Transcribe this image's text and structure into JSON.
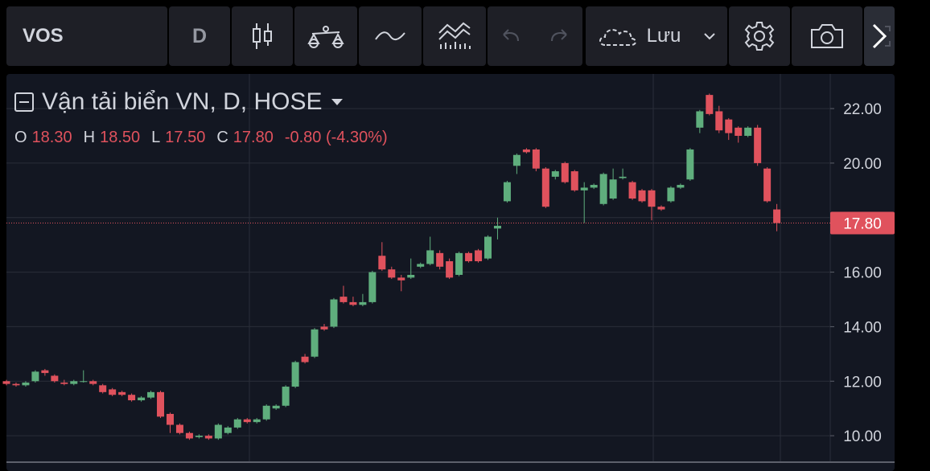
{
  "toolbar": {
    "symbol": "VOS",
    "interval": "D",
    "save": "Lưu"
  },
  "chart_data": {
    "type": "candlestick",
    "title": "Vận tải biển VN, D, HOSE",
    "legend": [
      {
        "key": "O",
        "value": "18.30"
      },
      {
        "key": "H",
        "value": "18.50"
      },
      {
        "key": "L",
        "value": "17.50"
      },
      {
        "key": "C",
        "value": "17.80"
      }
    ],
    "change": "-0.80 (-4.30%)",
    "open": [
      12.0,
      11.9,
      11.85,
      12.0,
      12.4,
      12.2,
      11.95,
      11.9,
      12.0,
      12.0,
      11.85,
      11.7,
      11.6,
      11.5,
      11.3,
      11.4,
      11.6,
      10.8,
      10.4,
      10.1,
      9.95,
      10.0,
      9.9,
      10.1,
      10.3,
      10.6,
      10.5,
      10.6,
      11.0,
      11.1,
      11.8,
      12.9,
      12.9,
      14.0,
      14.0,
      15.1,
      14.9,
      14.8,
      14.9,
      16.6,
      16.1,
      15.8,
      15.8,
      16.2,
      16.3,
      16.7,
      16.4,
      15.9,
      16.7,
      16.8,
      16.5,
      17.6,
      18.6,
      19.9,
      20.5,
      20.5,
      19.8,
      19.5,
      20.0,
      19.7,
      19.0,
      19.1,
      18.5,
      18.7,
      19.45,
      19.3,
      19.0,
      19.0,
      18.4,
      18.6,
      19.1,
      19.4,
      21.3,
      22.5,
      21.9,
      21.6,
      21.3,
      21.0,
      21.3,
      19.8,
      18.3
    ],
    "high": [
      12.05,
      11.95,
      12.0,
      12.4,
      12.45,
      12.25,
      12.05,
      12.05,
      12.4,
      12.05,
      11.9,
      11.75,
      11.65,
      11.55,
      11.45,
      11.65,
      11.65,
      10.85,
      10.45,
      10.15,
      10.05,
      10.05,
      10.45,
      10.35,
      10.65,
      10.65,
      10.65,
      11.15,
      11.15,
      11.85,
      12.75,
      13.0,
      13.95,
      14.1,
      15.05,
      15.5,
      15.1,
      15.2,
      16.05,
      17.1,
      16.2,
      15.9,
      16.5,
      16.35,
      17.3,
      16.8,
      16.5,
      16.75,
      16.75,
      16.85,
      17.35,
      18.0,
      19.35,
      20.35,
      20.55,
      20.55,
      19.85,
      19.75,
      20.05,
      19.75,
      19.3,
      19.25,
      19.65,
      19.8,
      19.8,
      19.35,
      19.05,
      19.05,
      18.45,
      19.15,
      19.25,
      20.55,
      21.95,
      22.55,
      22.1,
      21.65,
      21.35,
      21.35,
      21.4,
      19.85,
      18.5
    ],
    "low": [
      11.85,
      11.8,
      11.8,
      11.95,
      12.2,
      11.95,
      11.85,
      11.85,
      11.95,
      11.85,
      11.55,
      11.45,
      11.45,
      11.25,
      11.25,
      11.35,
      10.65,
      10.1,
      10.05,
      9.85,
      9.9,
      9.85,
      9.85,
      10.05,
      10.25,
      10.45,
      10.45,
      10.55,
      10.95,
      11.05,
      11.75,
      12.65,
      12.85,
      13.85,
      13.95,
      14.85,
      14.75,
      14.75,
      14.85,
      16.05,
      15.75,
      15.3,
      15.75,
      16.15,
      16.25,
      16.1,
      15.75,
      15.85,
      16.35,
      16.35,
      16.45,
      17.2,
      18.55,
      19.6,
      20.35,
      19.7,
      18.35,
      19.4,
      19.25,
      18.95,
      17.8,
      19.05,
      18.45,
      18.65,
      19.4,
      18.65,
      18.55,
      17.9,
      18.25,
      18.55,
      19.05,
      19.35,
      21.1,
      21.75,
      21.1,
      20.85,
      20.75,
      20.95,
      19.9,
      18.55,
      17.5
    ],
    "close": [
      11.9,
      11.85,
      11.95,
      12.35,
      12.3,
      12.0,
      11.9,
      12.0,
      12.0,
      11.9,
      11.6,
      11.5,
      11.5,
      11.3,
      11.4,
      11.6,
      10.7,
      10.4,
      10.1,
      9.9,
      10.0,
      9.9,
      10.4,
      10.3,
      10.6,
      10.5,
      10.6,
      11.1,
      11.1,
      11.8,
      12.7,
      12.7,
      13.9,
      13.9,
      15.0,
      14.9,
      14.8,
      14.9,
      16.0,
      16.1,
      15.8,
      15.7,
      15.9,
      16.3,
      16.8,
      16.2,
      15.8,
      16.7,
      16.4,
      16.4,
      17.3,
      17.7,
      19.3,
      20.3,
      20.4,
      19.8,
      18.4,
      19.7,
      19.3,
      19.0,
      19.1,
      19.2,
      19.6,
      19.4,
      19.5,
      18.7,
      18.6,
      18.4,
      18.3,
      19.1,
      19.2,
      20.5,
      21.9,
      21.8,
      21.2,
      21.1,
      21.0,
      21.3,
      20.0,
      18.6,
      17.8
    ],
    "up_color": "#5fae7d",
    "down_color": "#e0525d",
    "last_price": {
      "value": 17.8,
      "label": "17.80"
    },
    "ylim": [
      9.03,
      23.27
    ],
    "yticks": [
      {
        "value": 10,
        "label": "10.00"
      },
      {
        "value": 12,
        "label": "12.00"
      },
      {
        "value": 14,
        "label": "14.00"
      },
      {
        "value": 16,
        "label": "16.00"
      },
      {
        "value": 18,
        "label": "18.00"
      },
      {
        "value": 20,
        "label": "20.00"
      },
      {
        "value": 22,
        "label": "22.00"
      }
    ],
    "grid": true
  }
}
